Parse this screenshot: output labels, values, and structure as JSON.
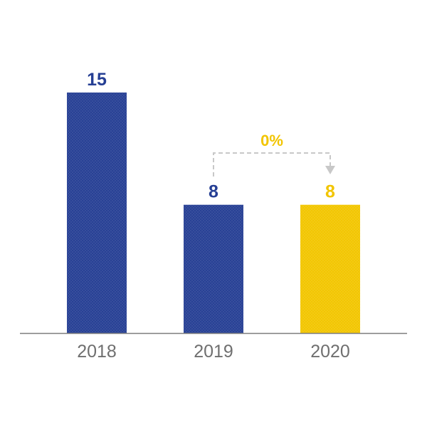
{
  "chart_data": {
    "type": "bar",
    "title": "",
    "xlabel": "",
    "ylabel": "",
    "categories": [
      "2018",
      "2019",
      "2020"
    ],
    "values": [
      15,
      8,
      8
    ],
    "value_labels": [
      "15",
      "8",
      "8"
    ],
    "bar_colors": [
      "#263f94",
      "#263f94",
      "#f2c500"
    ],
    "label_colors": [
      "#263f94",
      "#263f94",
      "#f2c500"
    ],
    "ylim": [
      0,
      15
    ],
    "grid": false,
    "legend": "none",
    "annotation": {
      "text": "0%",
      "from_category": "2019",
      "to_category": "2020",
      "color": "#f2c500",
      "arrow_color": "#c8c8c8"
    },
    "axis_color": "#7d7d7d",
    "tick_label_color": "#6f6f6f"
  }
}
